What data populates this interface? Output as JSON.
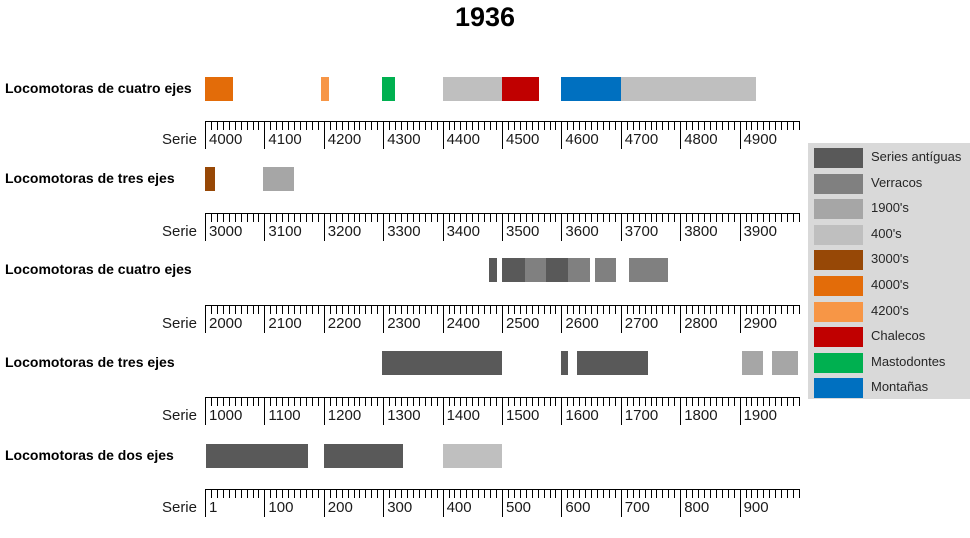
{
  "title": "1936",
  "axis_caption": "Serie",
  "legend": {
    "background": "#D9D9D9",
    "items": [
      {
        "label": "Series antíguas",
        "color": "#595959"
      },
      {
        "label": "Verracos",
        "color": "#808080"
      },
      {
        "label": "1900's",
        "color": "#A6A6A6"
      },
      {
        "label": "400's",
        "color": "#BFBFBF"
      },
      {
        "label": "3000's",
        "color": "#974806"
      },
      {
        "label": "4000's",
        "color": "#E36C09"
      },
      {
        "label": "4200's",
        "color": "#F79646"
      },
      {
        "label": "Chalecos",
        "color": "#C00000"
      },
      {
        "label": "Mastodontes",
        "color": "#00B050"
      },
      {
        "label": "Montañas",
        "color": "#0070C0"
      }
    ]
  },
  "chart_data": {
    "type": "bar",
    "title": "1936",
    "description": "Ranges of locomotive series numbers per axle-count group, ruler axes every 10 units with major ticks every 100",
    "legend_position": "right",
    "tracks": [
      {
        "label": "Locomotoras de cuatro ejes",
        "axis": {
          "label": "Serie",
          "min": 4000,
          "max": 5000,
          "major_tick": 100,
          "minor_tick": 10,
          "tick_labels": [
            "4000",
            "4100",
            "4200",
            "4300",
            "4400",
            "4500",
            "4600",
            "4700",
            "4800",
            "4900"
          ]
        },
        "segments": [
          {
            "from": 4000,
            "to": 4047,
            "series": "4000's",
            "color": "#E36C09"
          },
          {
            "from": 4196,
            "to": 4209,
            "series": "4200's",
            "color": "#F79646"
          },
          {
            "from": 4298,
            "to": 4320,
            "series": "Mastodontes",
            "color": "#00B050"
          },
          {
            "from": 4400,
            "to": 4500,
            "series": "400's",
            "color": "#BFBFBF"
          },
          {
            "from": 4500,
            "to": 4562,
            "series": "Chalecos",
            "color": "#C00000"
          },
          {
            "from": 4600,
            "to": 4700,
            "series": "Montañas",
            "color": "#0070C0"
          },
          {
            "from": 4700,
            "to": 4927,
            "series": "400's",
            "color": "#BFBFBF"
          }
        ]
      },
      {
        "label": "Locomotoras de tres ejes",
        "axis": {
          "label": "Serie",
          "min": 3000,
          "max": 4000,
          "major_tick": 100,
          "minor_tick": 10,
          "tick_labels": [
            "3000",
            "3100",
            "3200",
            "3300",
            "3400",
            "3500",
            "3600",
            "3700",
            "3800",
            "3900"
          ]
        },
        "segments": [
          {
            "from": 3000,
            "to": 3017,
            "series": "3000's",
            "color": "#974806"
          },
          {
            "from": 3098,
            "to": 3150,
            "series": "1900's",
            "color": "#A6A6A6"
          }
        ]
      },
      {
        "label": "Locomotoras de cuatro ejes",
        "axis": {
          "label": "Serie",
          "min": 2000,
          "max": 3000,
          "major_tick": 100,
          "minor_tick": 10,
          "tick_labels": [
            "2000",
            "2100",
            "2200",
            "2300",
            "2400",
            "2500",
            "2600",
            "2700",
            "2800",
            "2900"
          ]
        },
        "segments": [
          {
            "from": 2478,
            "to": 2491,
            "series": "Series antíguas",
            "color": "#595959"
          },
          {
            "from": 2500,
            "to": 2538,
            "series": "Series antíguas",
            "color": "#595959"
          },
          {
            "from": 2538,
            "to": 2574,
            "series": "Verracos",
            "color": "#808080"
          },
          {
            "from": 2574,
            "to": 2611,
            "series": "Series antíguas",
            "color": "#595959"
          },
          {
            "from": 2611,
            "to": 2648,
            "series": "Verracos",
            "color": "#808080"
          },
          {
            "from": 2656,
            "to": 2692,
            "series": "Verracos",
            "color": "#808080"
          },
          {
            "from": 2714,
            "to": 2779,
            "series": "Verracos",
            "color": "#808080"
          }
        ]
      },
      {
        "label": "Locomotoras de tres ejes",
        "axis": {
          "label": "Serie",
          "min": 1000,
          "max": 2000,
          "major_tick": 100,
          "minor_tick": 10,
          "tick_labels": [
            "1000",
            "1100",
            "1200",
            "1300",
            "1400",
            "1500",
            "1600",
            "1700",
            "1800",
            "1900"
          ]
        },
        "segments": [
          {
            "from": 1298,
            "to": 1500,
            "series": "Series antíguas",
            "color": "#595959"
          },
          {
            "from": 1600,
            "to": 1611,
            "series": "Series antíguas",
            "color": "#595959"
          },
          {
            "from": 1626,
            "to": 1746,
            "series": "Series antíguas",
            "color": "#595959"
          },
          {
            "from": 1904,
            "to": 1939,
            "series": "1900's",
            "color": "#A6A6A6"
          },
          {
            "from": 1955,
            "to": 1998,
            "series": "1900's",
            "color": "#A6A6A6"
          }
        ]
      },
      {
        "label": "Locomotoras de dos ejes",
        "axis": {
          "label": "Serie",
          "min": 0,
          "max": 1000,
          "major_tick": 100,
          "minor_tick": 10,
          "tick_labels": [
            "1",
            "100",
            "200",
            "300",
            "400",
            "500",
            "600",
            "700",
            "800",
            "900"
          ]
        },
        "segments": [
          {
            "from": 1,
            "to": 174,
            "series": "Series antíguas",
            "color": "#595959"
          },
          {
            "from": 200,
            "to": 333,
            "series": "Series antíguas",
            "color": "#595959"
          },
          {
            "from": 400,
            "to": 500,
            "series": "400's",
            "color": "#BFBFBF"
          }
        ]
      }
    ]
  }
}
